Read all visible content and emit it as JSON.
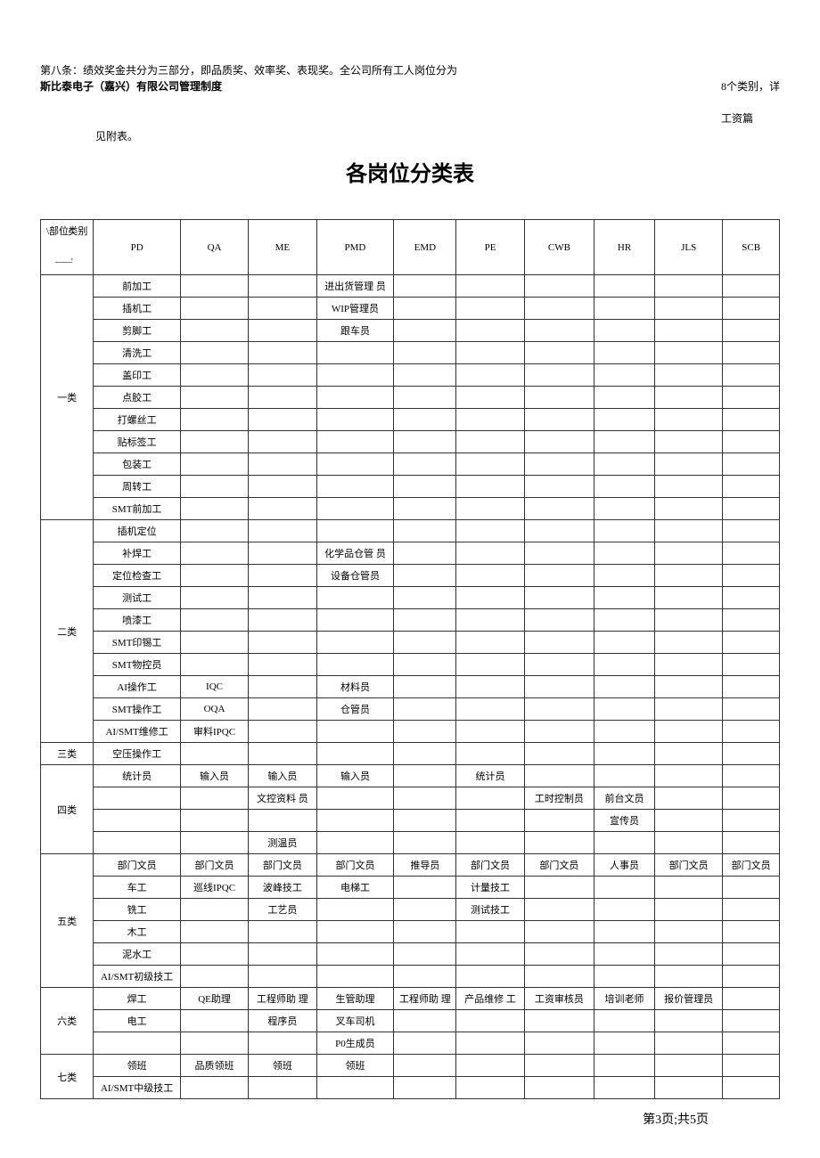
{
  "header": {
    "article_text": "第八条：绩效奖金共分为三部分，即品质奖、效率奖、表现奖。全公司所有工人岗位分为",
    "right_text": "8个类别，详",
    "company": "斯比泰电子（嘉兴）有限公司管理制度",
    "right_sub": "工资篇",
    "sub": "见附表。"
  },
  "title": "各岗位分类表",
  "columns": {
    "diag_top": "类别",
    "diag_bot": "\\部位^",
    "diag_dash": "——'",
    "pd": "PD",
    "qa": "QA",
    "me": "ME",
    "pmd": "PMD",
    "emd": "EMD",
    "pe": "PE",
    "cwb": "CWB",
    "hr": "HR",
    "jls": "JLS",
    "scb": "SCB"
  },
  "cat": {
    "c1": "一类",
    "c2": "二类",
    "c3": "三类",
    "c4": "四类",
    "c5": "五类",
    "c6": "六类",
    "c7": "七类"
  },
  "c1": {
    "pd": [
      "前加工",
      "插机工",
      "剪脚工",
      "清洗工",
      "盖印工",
      "点胶工",
      "打螺丝工",
      "贴标签工",
      "包装工",
      "周转工",
      "SMT前加工"
    ],
    "pmd": [
      "进出货管理 员",
      "WIP管理员",
      "跟车员"
    ]
  },
  "c2": {
    "pd": [
      "插机定位",
      "补焊工",
      "定位检查工",
      "测试工",
      "喷漆工",
      "SMT印锡工",
      "SMT物控员",
      "AI操作工",
      "SMT操作工",
      "AI/SMT维修工"
    ],
    "pmd": [
      "",
      "化学品仓管 员",
      "设备仓管员",
      "",
      "",
      "",
      "",
      "材料员",
      "仓管员",
      ""
    ],
    "qa": [
      "",
      "",
      "",
      "",
      "",
      "",
      "",
      "IQC",
      "OQA",
      "审料IPQC"
    ]
  },
  "c3": {
    "pd": "空压操作工"
  },
  "c4": {
    "r1": {
      "pd": "统计员",
      "qa": "输入员",
      "me": "输入员",
      "pmd": "输入员",
      "pe": "统计员"
    },
    "r2": {
      "me": "文控资料 员",
      "cwb": "工时控制员",
      "hr": "前台文员"
    },
    "r3": {
      "hr": "宣传员"
    },
    "r4": {
      "me": "测温员"
    }
  },
  "c5": {
    "r1": {
      "pd": "部门文员",
      "qa": "部门文员",
      "me": "部门文员",
      "pmd": "部门文员",
      "emd": "推导员",
      "pe": "部门文员",
      "cwb": "部门文员",
      "hr": "人事员",
      "jls": "部门文员",
      "scb": "部门文员"
    },
    "r2": {
      "pd": "车工",
      "qa": "巡线IPQC",
      "me": "波峰技工",
      "pmd": "电梯工",
      "pe": "计量技工"
    },
    "r3": {
      "pd": "铣工",
      "me": "工艺员",
      "pe": "测试技工"
    },
    "r4": {
      "pd": "木工"
    },
    "r5": {
      "pd": "泥水工"
    },
    "r6": {
      "pd": "AI/SMT初级技工"
    }
  },
  "c6": {
    "r1": {
      "pd": "焊工",
      "qa": "QE助理",
      "me": "工程师助 理",
      "pmd": "生管助理",
      "emd": "工程师助 理",
      "pe": "产品维修 工",
      "cwb": "工资审核员",
      "hr": "培训老师",
      "jls": "报价管理员"
    },
    "r2": {
      "pd": "电工",
      "me": "程序员",
      "pmd": "叉车司机"
    },
    "r3": {
      "pmd": "P0生成员"
    }
  },
  "c7": {
    "r1": {
      "pd": "领班",
      "qa": "品质领班",
      "me": "领班",
      "pmd": "领班"
    },
    "r2": {
      "pd": "AI/SMT中级技工"
    }
  },
  "footer": "第3页;共5页"
}
